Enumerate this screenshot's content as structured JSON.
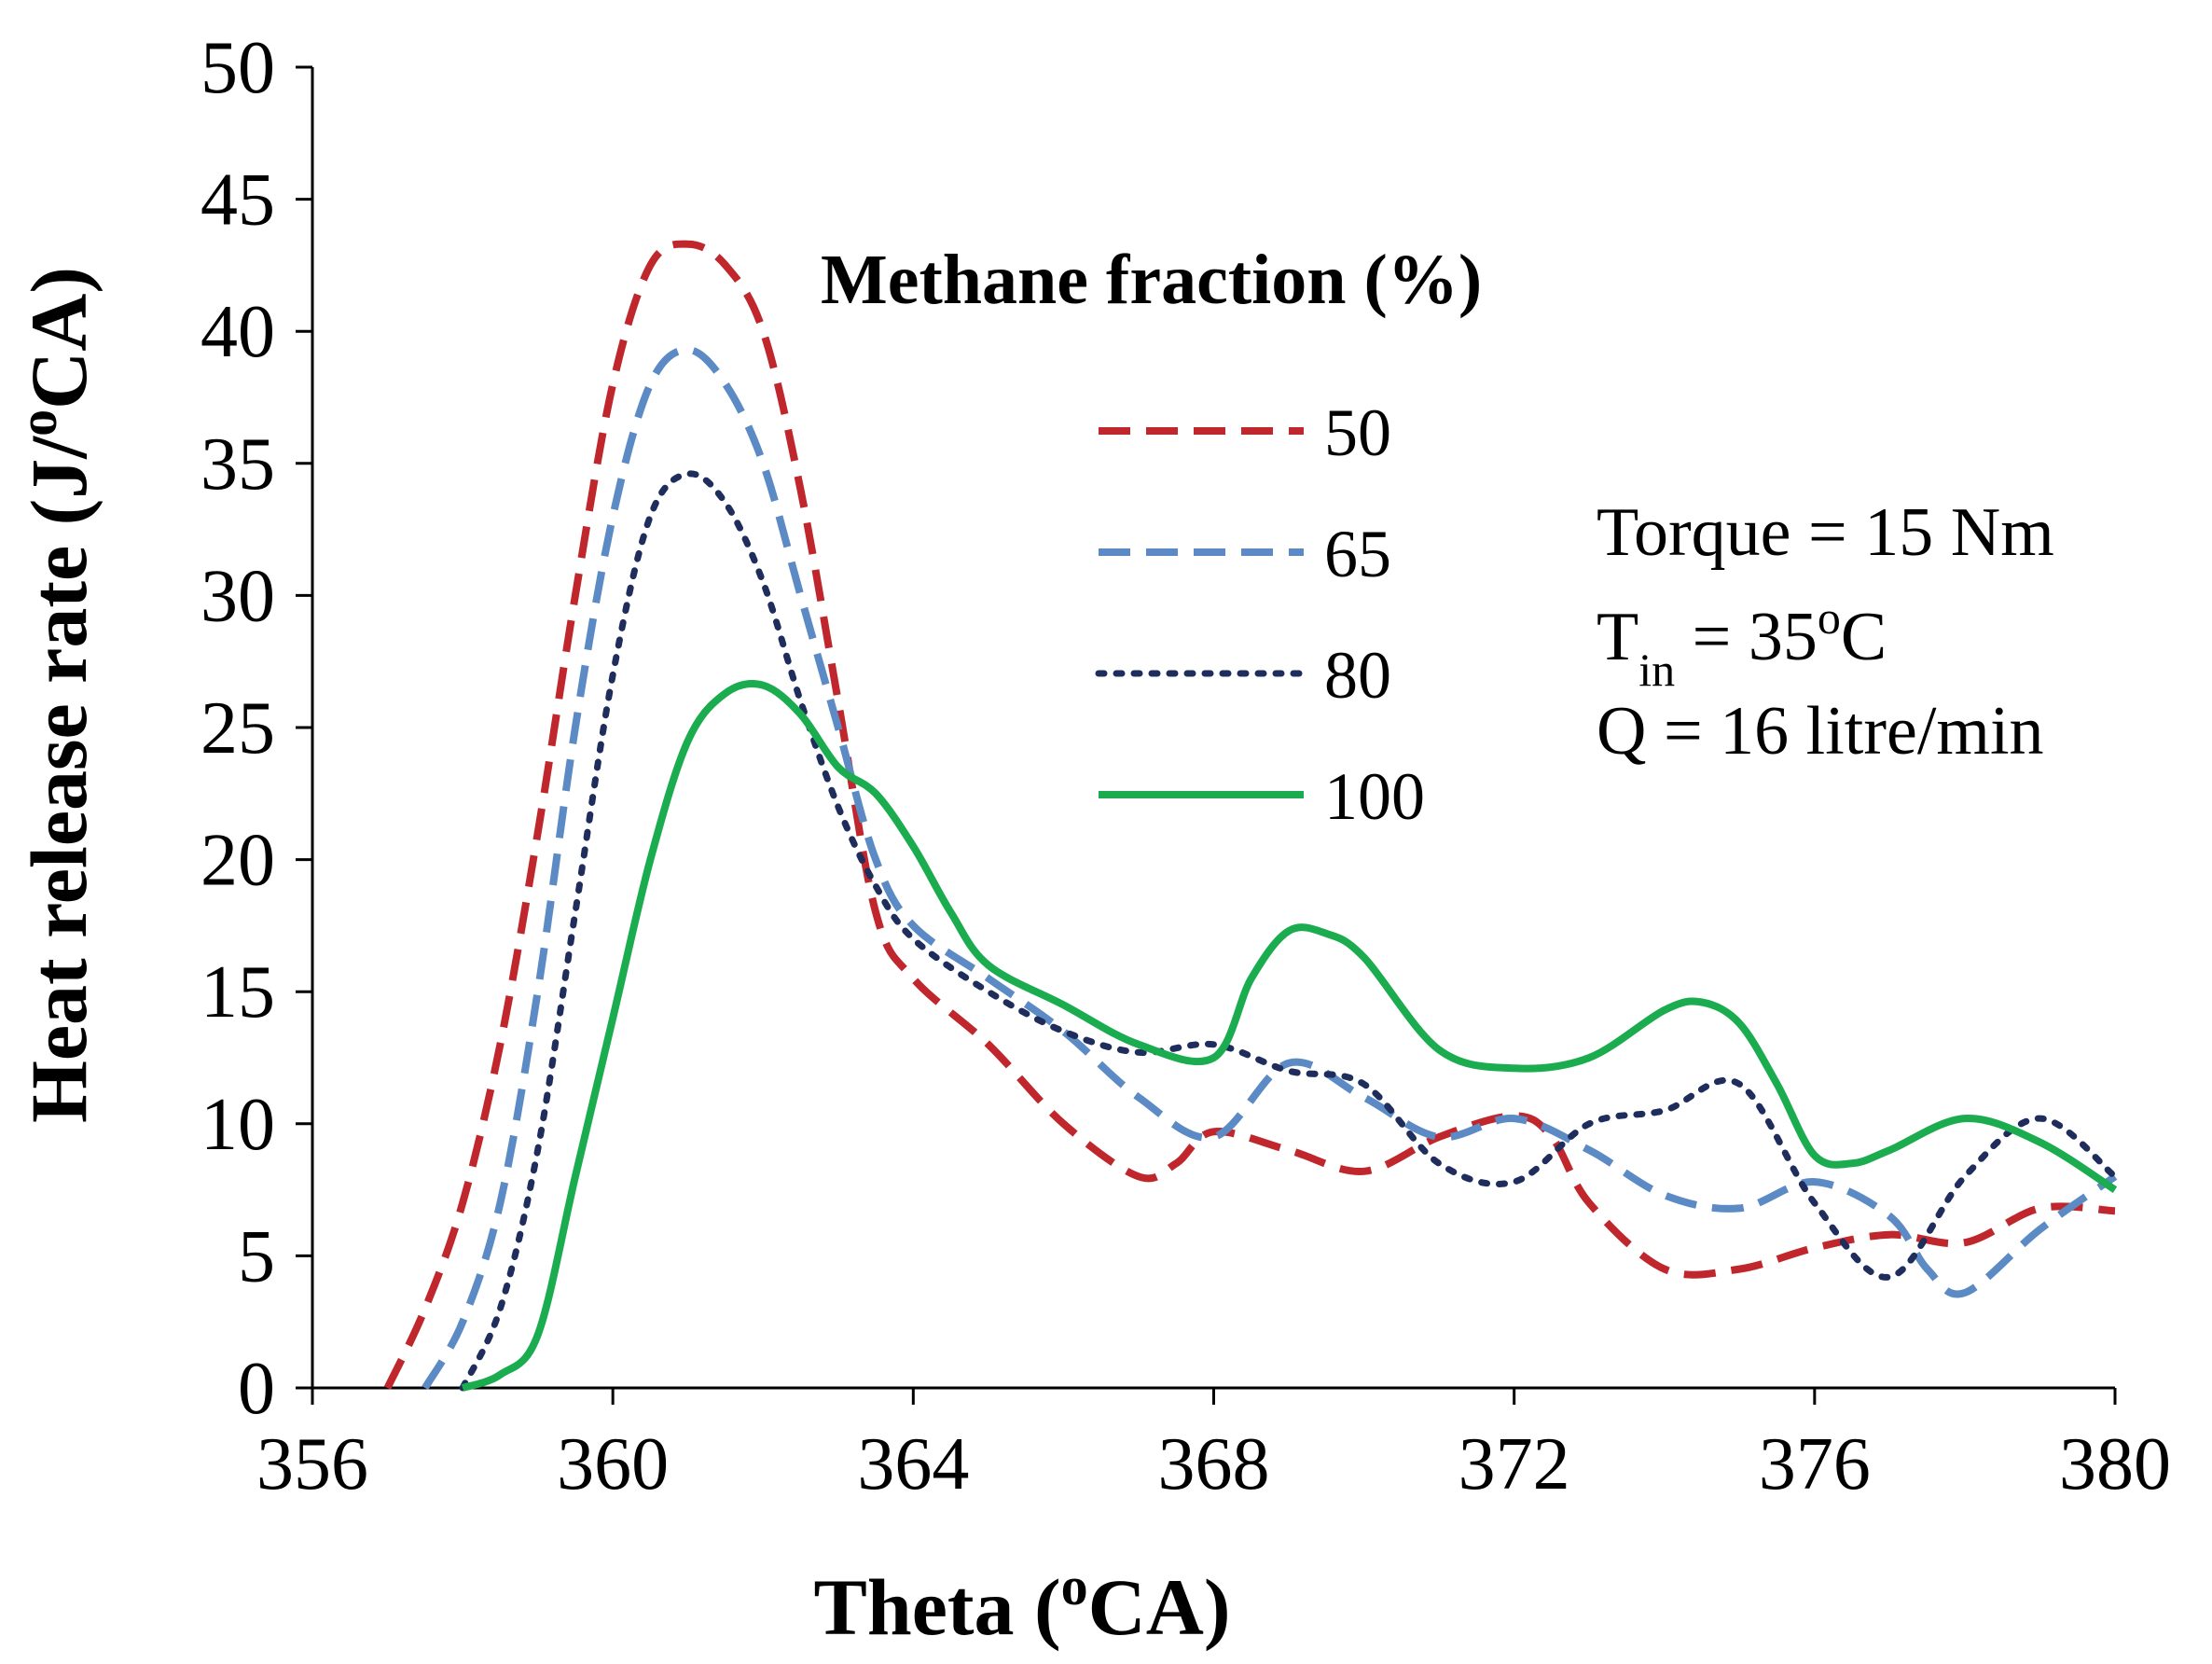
{
  "chart_data": {
    "type": "line",
    "xlabel_main": "Theta (",
    "xlabel_sup": "o",
    "xlabel_end": "CA)",
    "ylabel_main": "Heat release rate (J/",
    "ylabel_sup": "o",
    "ylabel_end": "CA)",
    "xlim": [
      356,
      380
    ],
    "ylim": [
      0,
      50
    ],
    "x_ticks": [
      "356",
      "360",
      "364",
      "368",
      "372",
      "376",
      "380"
    ],
    "y_ticks": [
      "0",
      "5",
      "10",
      "15",
      "20",
      "25",
      "30",
      "35",
      "40",
      "45",
      "50"
    ],
    "legend_title": "Methane fraction (%)",
    "legend_position": "top-center",
    "grid": false,
    "series": [
      {
        "name": "50",
        "color": "#c0272d",
        "style": "dashed",
        "x": [
          357.0,
          357.5,
          358.0,
          358.5,
          359.0,
          359.5,
          360.0,
          360.5,
          361.0,
          361.5,
          362.0,
          362.5,
          363.0,
          363.5,
          364.0,
          365.0,
          366.0,
          367.0,
          367.5,
          368.0,
          369.0,
          370.0,
          371.0,
          372.0,
          372.5,
          373.0,
          374.0,
          375.0,
          376.0,
          377.0,
          378.0,
          379.0,
          380.0
        ],
        "y": [
          0,
          3,
          7,
          13,
          21,
          30,
          38,
          42.5,
          43.3,
          42.5,
          40,
          34,
          26,
          18,
          15.5,
          13,
          10,
          8,
          8.5,
          9.7,
          9.0,
          8.2,
          9.5,
          10.3,
          9.5,
          7,
          4.5,
          4.5,
          5.3,
          5.8,
          5.5,
          6.8,
          6.7
        ]
      },
      {
        "name": "65",
        "color": "#5b8ac4",
        "style": "dashed",
        "x": [
          357.5,
          358.0,
          358.5,
          359.0,
          359.5,
          360.0,
          360.5,
          361.0,
          361.5,
          362.0,
          362.5,
          363.0,
          363.5,
          364.0,
          365.0,
          366.0,
          367.0,
          368.0,
          369.0,
          370.0,
          371.0,
          372.0,
          373.0,
          374.0,
          375.0,
          376.0,
          377.0,
          377.5,
          378.0,
          379.0,
          380.0
        ],
        "y": [
          0,
          2.5,
          7,
          15,
          25,
          33,
          38,
          39.3,
          38,
          35,
          30,
          25,
          20,
          17.5,
          15.5,
          13.5,
          11,
          9.5,
          12.3,
          11.0,
          9.5,
          10.2,
          9.0,
          7.3,
          6.8,
          7.8,
          6.5,
          4.5,
          3.6,
          6.0,
          8.0
        ]
      },
      {
        "name": "80",
        "color": "#1f2d5c",
        "style": "dotted",
        "x": [
          358.0,
          358.5,
          359.0,
          359.5,
          360.0,
          360.5,
          361.0,
          361.5,
          362.0,
          362.5,
          363.0,
          363.5,
          364.0,
          365.0,
          366.0,
          367.0,
          368.0,
          369.0,
          370.0,
          371.0,
          372.0,
          373.0,
          374.0,
          375.0,
          376.0,
          377.0,
          378.0,
          379.0,
          380.0
        ],
        "y": [
          0,
          3,
          9,
          18,
          27,
          33,
          34.6,
          33.5,
          30.5,
          26,
          22,
          19,
          17,
          15,
          13.5,
          12.7,
          13,
          12,
          11.5,
          8.5,
          7.8,
          10,
          10.5,
          11.5,
          7,
          4.2,
          8,
          10.2,
          8
        ]
      },
      {
        "name": "100",
        "color": "#1aac4e",
        "style": "solid",
        "x": [
          358.0,
          358.5,
          359.0,
          359.5,
          360.0,
          360.5,
          361.0,
          361.5,
          362.0,
          362.5,
          363.0,
          363.5,
          364.0,
          364.5,
          365.0,
          366.0,
          367.0,
          368.0,
          368.5,
          369.0,
          369.5,
          370.0,
          371.0,
          372.0,
          373.0,
          374.0,
          374.5,
          375.0,
          375.5,
          376.0,
          376.5,
          377.0,
          378.0,
          379.0,
          380.0
        ],
        "y": [
          0,
          0.5,
          2,
          8,
          14,
          20,
          24.5,
          26.3,
          26.6,
          25.5,
          23.5,
          22.5,
          20.5,
          18,
          16,
          14.5,
          13,
          12.5,
          15.5,
          17.3,
          17.2,
          16.3,
          12.8,
          12.1,
          12.5,
          14.3,
          14.6,
          13.8,
          11.5,
          8.8,
          8.5,
          9,
          10.2,
          9.3,
          7.5
        ]
      }
    ],
    "annotations": {
      "torque": "Torque = 15 Nm",
      "tin_main": "T",
      "tin_sub": "in",
      "tin_mid": " = 35",
      "tin_sup": "o",
      "tin_end": "C",
      "flow": "Q = 16 litre/min"
    }
  }
}
